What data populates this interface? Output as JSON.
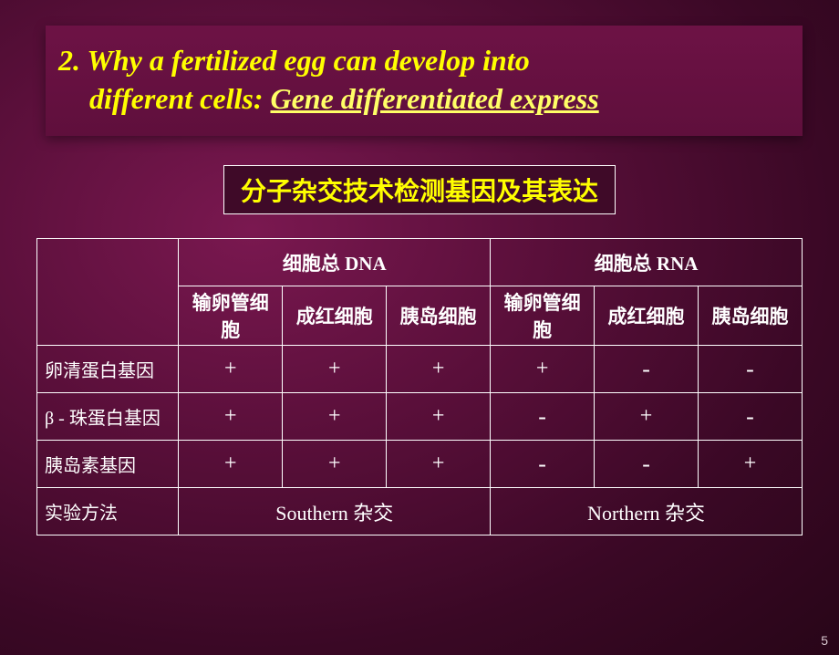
{
  "title": {
    "prefix": "2. ",
    "line1": "Why a fertilized egg can develop into",
    "line2_plain": "different cells: ",
    "line2_link": "Gene differentiated express"
  },
  "subtitle": "分子杂交技术检测基因及其表达",
  "table": {
    "group_headers": [
      "细胞总 DNA",
      "细胞总 RNA"
    ],
    "sub_headers": [
      "输卵管细胞",
      "成红细胞",
      "胰岛细胞",
      "输卵管细胞",
      "成红细胞",
      "胰岛细胞"
    ],
    "rows": [
      {
        "label": "卵清蛋白基因",
        "cells": [
          "+",
          "+",
          "+",
          "+",
          "-",
          "-"
        ]
      },
      {
        "label": "β - 珠蛋白基因",
        "cells": [
          "+",
          "+",
          "+",
          "-",
          "+",
          "-"
        ]
      },
      {
        "label": "胰岛素基因",
        "cells": [
          "+",
          "+",
          "+",
          "-",
          "-",
          "+"
        ]
      }
    ],
    "method_row": {
      "label": "实验方法",
      "methods": [
        "Southern 杂交",
        "Northern 杂交"
      ]
    }
  },
  "page_number": "5",
  "colors": {
    "text_yellow": "#ffff00",
    "text_white": "#ffffff",
    "border": "#ffffff",
    "bg_dark": "#3a0825",
    "title_bg": "#5f0f3c"
  }
}
